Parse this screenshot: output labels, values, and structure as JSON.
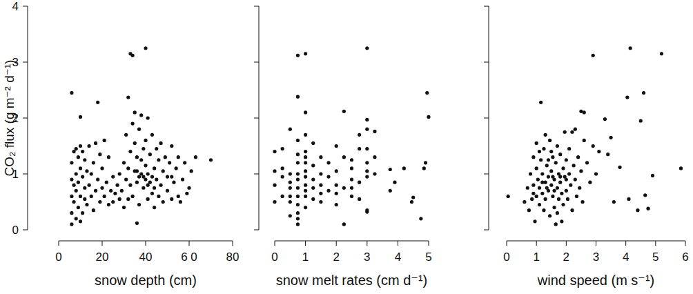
{
  "chart_data": [
    {
      "type": "scatter",
      "x_label": "snow depth (cm)",
      "y_label": "CO₂ flux (g m⁻² d⁻¹)",
      "color": "#111111",
      "marker": "circle",
      "xlim": [
        0,
        80
      ],
      "ylim": [
        0,
        4
      ],
      "xticks": [
        0,
        20,
        40,
        {
          "value": 60,
          "label": "6 0"
        },
        80
      ],
      "yticks": [
        0,
        1,
        2,
        3,
        4
      ],
      "x": [
        6,
        10,
        18,
        33,
        34,
        40,
        32,
        63,
        70,
        36,
        6,
        6,
        6,
        6,
        6,
        7,
        7,
        7,
        8,
        8,
        8,
        8,
        9,
        9,
        9,
        10,
        10,
        10,
        10,
        11,
        11,
        11,
        12,
        12,
        12,
        13,
        13,
        14,
        14,
        15,
        15,
        16,
        16,
        17,
        17,
        18,
        19,
        19,
        20,
        20,
        21,
        21,
        22,
        23,
        23,
        24,
        25,
        25,
        26,
        27,
        28,
        28,
        29,
        30,
        30,
        31,
        31,
        32,
        32,
        33,
        33,
        34,
        34,
        35,
        35,
        35,
        36,
        36,
        37,
        37,
        37,
        38,
        38,
        38,
        39,
        39,
        40,
        40,
        40,
        41,
        41,
        41,
        42,
        42,
        43,
        43,
        44,
        44,
        45,
        45,
        46,
        46,
        47,
        47,
        48,
        48,
        49,
        50,
        50,
        51,
        52,
        52,
        53,
        54,
        55,
        55,
        56,
        57,
        58,
        59,
        60,
        61,
        52,
        44,
        39,
        41,
        36,
        43
      ],
      "values": [
        2.45,
        2.02,
        2.28,
        3.15,
        3.12,
        3.25,
        2.37,
        1.3,
        1.25,
        0.12,
        0.1,
        0.3,
        0.6,
        0.9,
        1.2,
        0.5,
        0.8,
        1.4,
        0.2,
        0.7,
        1.0,
        1.45,
        0.4,
        0.85,
        1.3,
        0.15,
        0.6,
        1.1,
        1.5,
        0.3,
        0.95,
        1.4,
        0.55,
        0.75,
        1.25,
        0.45,
        1.05,
        0.8,
        1.5,
        0.6,
        1.0,
        0.35,
        1.2,
        0.7,
        1.55,
        0.9,
        0.5,
        1.35,
        0.75,
        1.1,
        0.6,
        1.6,
        0.85,
        0.45,
        1.3,
        0.7,
        0.95,
        0.5,
        0.65,
        0.8,
        1.0,
        0.55,
        0.7,
        0.4,
        1.2,
        0.9,
        1.7,
        0.55,
        1.1,
        1.4,
        0.8,
        1.9,
        0.6,
        1.05,
        2.1,
        1.55,
        0.85,
        1.3,
        0.95,
        1.8,
        0.45,
        1.0,
        1.25,
        2.05,
        0.75,
        1.45,
        0.9,
        1.15,
        1.6,
        0.55,
        1.0,
        2.0,
        0.85,
        1.35,
        1.7,
        0.65,
        1.1,
        0.4,
        1.45,
        0.9,
        1.25,
        0.6,
        0.8,
        1.55,
        0.5,
        1.05,
        1.3,
        0.7,
        0.95,
        1.2,
        0.55,
        1.5,
        0.85,
        1.1,
        0.6,
        1.3,
        0.5,
        0.9,
        1.2,
        0.65,
        0.75,
        1.05,
        0.95,
        0.75,
        0.95,
        0.8,
        1.05,
        0.95
      ]
    },
    {
      "type": "scatter",
      "x_label": "snow melt rates (cm d⁻¹)",
      "color": "#111111",
      "marker": "circle",
      "tick_labels": "x",
      "xlim": [
        0,
        5
      ],
      "ylim": [
        0,
        4
      ],
      "xticks": [
        0,
        1,
        2,
        3,
        4,
        5
      ],
      "yticks": [
        0,
        1,
        2,
        3,
        4
      ],
      "x": [
        0,
        0,
        0,
        0,
        0.25,
        0.25,
        0.25,
        0.25,
        0.5,
        0.5,
        0.5,
        0.5,
        0.5,
        0.5,
        0.5,
        0.75,
        0.75,
        0.75,
        0.75,
        0.75,
        0.75,
        0.75,
        0.75,
        0.75,
        0.75,
        0.75,
        0.75,
        0.75,
        1,
        1,
        1,
        1,
        1,
        1,
        1,
        1,
        1,
        1,
        1,
        1,
        1.25,
        1.25,
        1.25,
        1.25,
        1.25,
        1.5,
        1.5,
        1.5,
        1.5,
        1.5,
        1.75,
        1.75,
        1.75,
        2,
        2,
        2,
        2,
        2,
        2.25,
        2.25,
        2.25,
        2.25,
        2.5,
        2.5,
        2.5,
        2.5,
        2.5,
        2.75,
        2.75,
        2.75,
        2.75,
        3,
        3,
        3,
        3,
        3,
        3,
        3,
        3,
        3,
        3.25,
        3.25,
        3.25,
        3.75,
        3.75,
        3.9,
        4.2,
        4.45,
        4.5,
        4.75,
        4.85,
        4.9,
        4.95,
        5
      ],
      "values": [
        0.5,
        0.8,
        1.05,
        1.4,
        0.6,
        0.95,
        1.45,
        1.1,
        0.25,
        0.5,
        0.75,
        0.85,
        1.0,
        1.8,
        0.6,
        0.1,
        0.2,
        0.45,
        0.6,
        0.75,
        0.9,
        1.0,
        1.2,
        1.35,
        1.6,
        2.38,
        3.12,
        0.3,
        0.4,
        0.6,
        0.8,
        0.95,
        1.05,
        1.2,
        1.4,
        1.7,
        2.1,
        3.15,
        0.7,
        1.3,
        0.55,
        0.9,
        1.15,
        1.55,
        0.75,
        0.5,
        0.8,
        1.0,
        1.3,
        0.65,
        0.7,
        0.95,
        1.2,
        0.45,
        0.8,
        1.05,
        1.5,
        0.65,
        0.1,
        0.75,
        1.3,
        2.12,
        0.6,
        0.9,
        1.1,
        1.25,
        0.75,
        0.55,
        0.85,
        1.45,
        1.7,
        0.32,
        0.35,
        0.95,
        1.2,
        1.45,
        1.8,
        1.97,
        3.25,
        1.05,
        1.0,
        1.3,
        1.76,
        0.7,
        1.08,
        0.85,
        1.1,
        0.5,
        0.58,
        0.2,
        1.1,
        1.2,
        2.45,
        2.02
      ]
    },
    {
      "type": "scatter",
      "x_label": "wind speed (m s⁻¹)",
      "color": "#111111",
      "marker": "circle",
      "tick_labels": "x",
      "xlim": [
        0,
        6
      ],
      "ylim": [
        0,
        4
      ],
      "xticks": [
        0,
        1,
        2,
        3,
        4,
        5,
        6
      ],
      "yticks": [
        0,
        1,
        2,
        3,
        4
      ],
      "x": [
        0.05,
        1.15,
        2.9,
        4.15,
        5.2,
        4.6,
        4.5,
        4.05,
        5.85,
        4.9,
        4.75,
        4.65,
        4.4,
        4.1,
        3.8,
        3.5,
        3.3,
        3.4,
        3.1,
        2.9,
        3.0,
        3.6,
        2.6,
        2.5,
        2.3,
        2.2,
        0.6,
        0.7,
        0.75,
        0.8,
        0.85,
        0.9,
        0.9,
        0.95,
        1.0,
        1.0,
        1.0,
        1.05,
        1.1,
        1.1,
        1.15,
        1.2,
        1.2,
        1.25,
        1.25,
        1.3,
        1.3,
        1.35,
        1.4,
        1.4,
        1.45,
        1.45,
        1.5,
        1.5,
        1.55,
        1.55,
        1.6,
        1.6,
        1.65,
        1.65,
        1.7,
        1.7,
        1.75,
        1.75,
        1.8,
        1.8,
        1.85,
        1.85,
        1.9,
        1.9,
        1.95,
        1.95,
        2.0,
        2.0,
        2.05,
        2.1,
        2.1,
        2.15,
        2.2,
        2.25,
        2.3,
        2.35,
        2.4,
        2.45,
        2.5,
        2.55,
        2.6,
        2.7,
        2.8,
        1.3,
        1.5,
        1.7,
        1.2,
        1.4,
        1.6,
        1.8,
        2.0,
        1.1,
        0.9,
        1.35,
        1.55
      ],
      "values": [
        0.6,
        2.28,
        3.12,
        3.25,
        3.15,
        2.45,
        1.95,
        2.37,
        1.1,
        0.97,
        0.38,
        0.62,
        0.35,
        0.55,
        1.12,
        1.65,
        1.98,
        1.35,
        1.4,
        1.5,
        1.0,
        0.5,
        2.1,
        2.12,
        1.8,
        1.75,
        0.5,
        0.75,
        0.35,
        1.0,
        0.55,
        1.3,
        0.8,
        0.15,
        0.6,
        1.1,
        1.55,
        0.9,
        0.45,
        0.75,
        1.25,
        0.65,
        1.0,
        0.35,
        1.45,
        0.85,
        0.55,
        1.15,
        0.7,
        0.95,
        1.6,
        0.25,
        0.8,
        1.05,
        0.6,
        1.3,
        0.9,
        0.4,
        0.1,
        1.2,
        0.75,
        1.5,
        0.55,
        1.0,
        0.85,
        1.35,
        0.65,
        0.15,
        1.1,
        0.45,
        0.95,
        1.75,
        0.7,
        1.25,
        0.55,
        1.0,
        1.45,
        0.8,
        0.35,
        1.15,
        0.9,
        0.6,
        1.3,
        0.75,
        1.05,
        0.5,
        1.6,
        1.2,
        0.85,
        1.7,
        1.4,
        0.3,
        0.85,
        1.25,
        0.7,
        0.95,
        0.9,
        1.4,
        0.65,
        0.75,
        0.95
      ]
    }
  ]
}
